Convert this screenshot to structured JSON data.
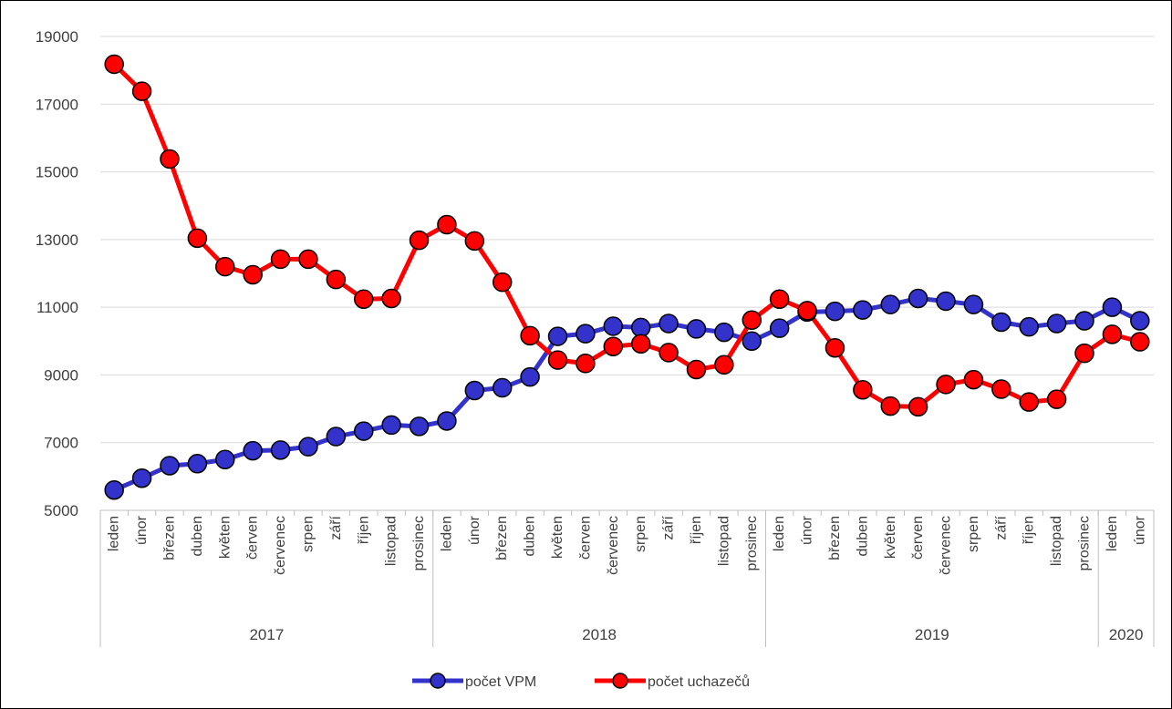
{
  "chart_data": {
    "type": "line",
    "title": "",
    "xlabel": "",
    "ylabel": "",
    "ylim": [
      5000,
      19000
    ],
    "y_ticks": [
      5000,
      7000,
      9000,
      11000,
      13000,
      15000,
      17000,
      19000
    ],
    "grid": true,
    "legend_position": "bottom",
    "categories": [
      "leden",
      "únor",
      "březen",
      "duben",
      "květen",
      "červen",
      "červenec",
      "srpen",
      "září",
      "říjen",
      "listopad",
      "prosinec",
      "leden",
      "únor",
      "březen",
      "duben",
      "květen",
      "červen",
      "červenec",
      "srpen",
      "září",
      "říjen",
      "listopad",
      "prosinec",
      "leden",
      "únor",
      "březen",
      "duben",
      "květen",
      "červen",
      "červenec",
      "srpen",
      "září",
      "říjen",
      "listopad",
      "prosinec",
      "leden",
      "únor"
    ],
    "years": [
      {
        "label": "2017",
        "count": 12
      },
      {
        "label": "2018",
        "count": 12
      },
      {
        "label": "2019",
        "count": 12
      },
      {
        "label": "2020",
        "count": 2
      }
    ],
    "series": [
      {
        "name": "počet VPM",
        "color": "#3333cc",
        "values": [
          5600,
          5950,
          6320,
          6380,
          6500,
          6760,
          6780,
          6880,
          7180,
          7340,
          7520,
          7480,
          7640,
          8540,
          8620,
          8940,
          10140,
          10220,
          10440,
          10400,
          10520,
          10360,
          10260,
          10000,
          10380,
          10860,
          10880,
          10920,
          11080,
          11260,
          11180,
          11080,
          10560,
          10420,
          10520,
          10600,
          11000,
          10600
        ]
      },
      {
        "name": "počet uchazečů",
        "color": "#ff0000",
        "values": [
          18180,
          17380,
          15380,
          13040,
          12200,
          11960,
          12420,
          12420,
          11820,
          11240,
          11260,
          12980,
          13440,
          12960,
          11740,
          10160,
          9440,
          9340,
          9840,
          9920,
          9660,
          9160,
          9300,
          10620,
          11240,
          10900,
          9800,
          8560,
          8080,
          8060,
          8720,
          8860,
          8580,
          8200,
          8280,
          9640,
          10200,
          9980
        ]
      }
    ]
  }
}
